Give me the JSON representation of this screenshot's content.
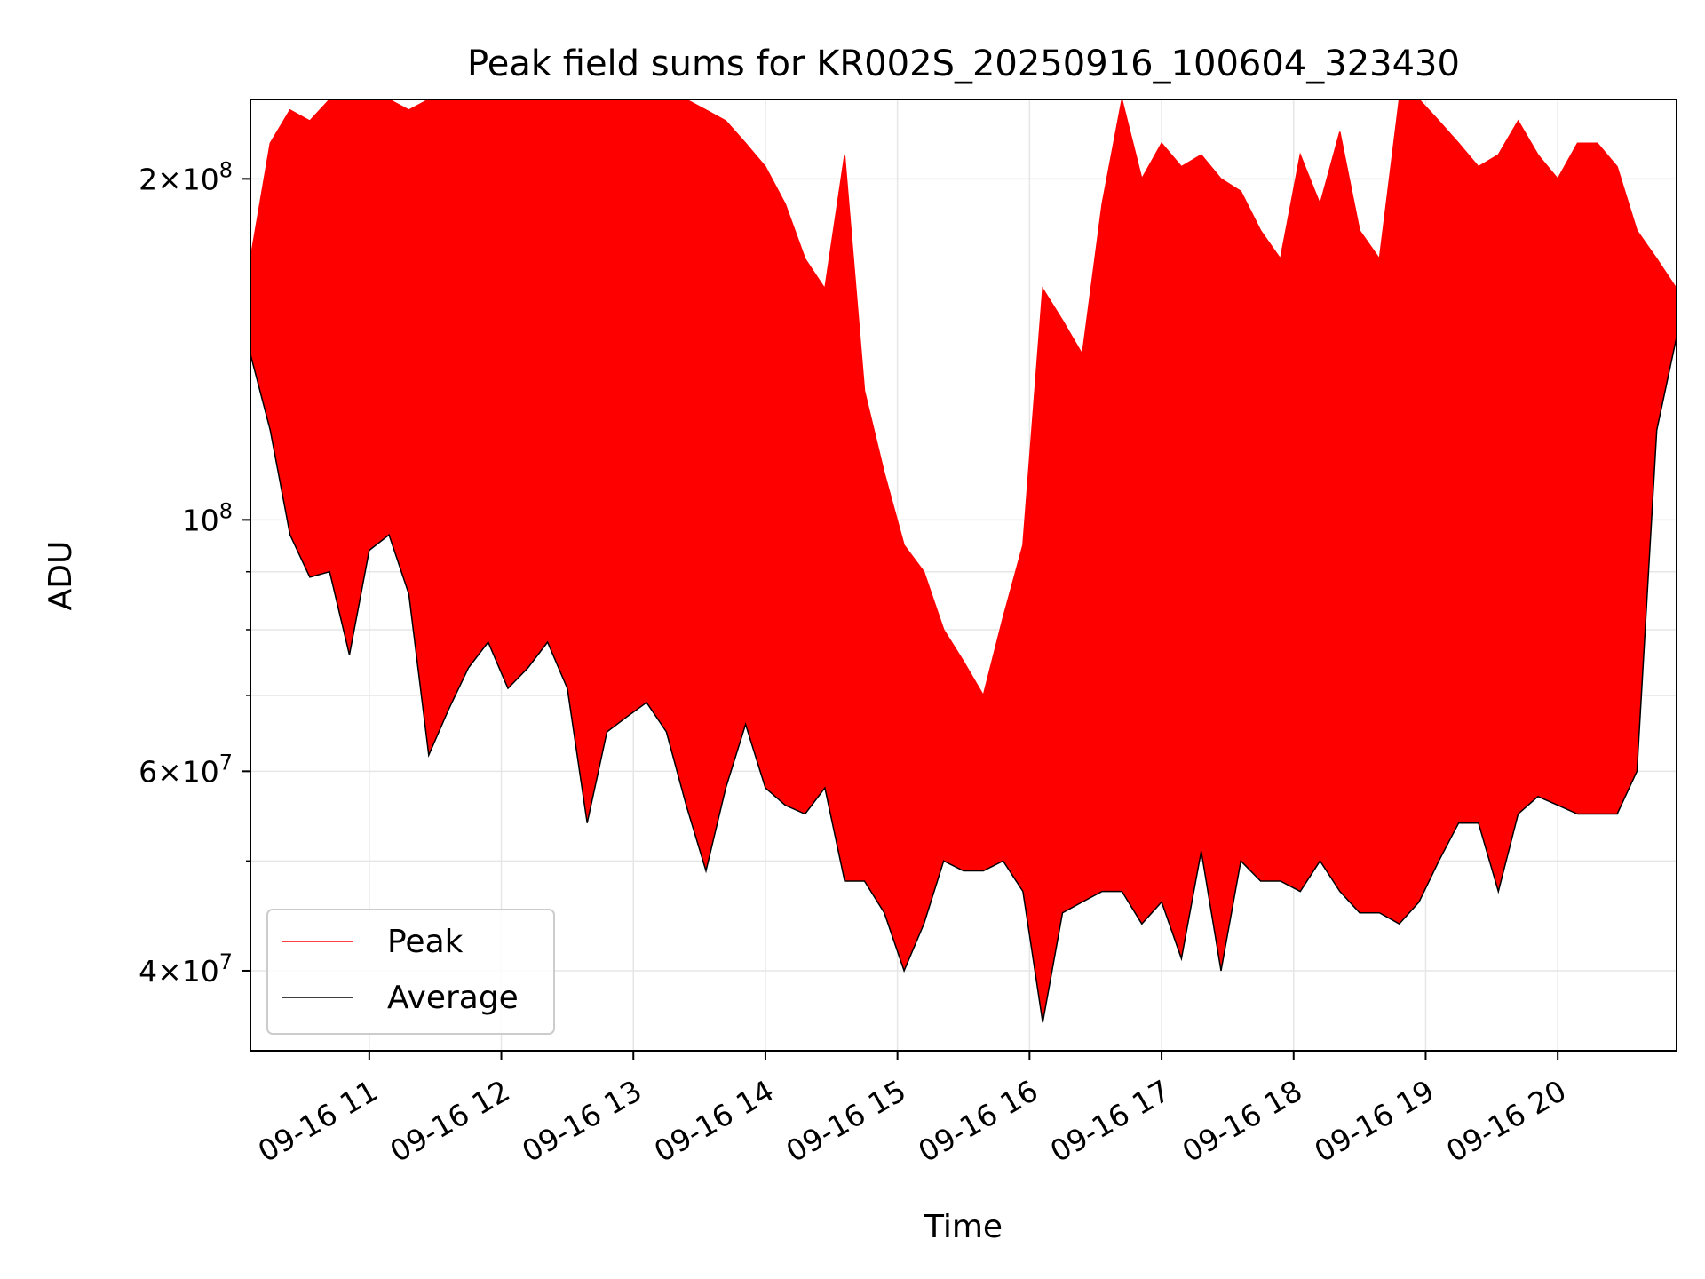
{
  "chart_data": {
    "type": "line",
    "title": "Peak field sums for KR002S_20250916_100604_323430",
    "xlabel": "Time",
    "ylabel": "ADU",
    "y_scale": "log",
    "ylim": [
      34000000,
      235000000
    ],
    "xlim": [
      "2025-09-16 10:06",
      "2025-09-16 20:54"
    ],
    "grid": true,
    "legend_position": "lower-left",
    "x_tick_labels": [
      "09-16 11",
      "09-16 12",
      "09-16 13",
      "09-16 14",
      "09-16 15",
      "09-16 16",
      "09-16 17",
      "09-16 18",
      "09-16 19",
      "09-16 20"
    ],
    "x_tick_times": [
      "2025-09-16 11:00",
      "2025-09-16 12:00",
      "2025-09-16 13:00",
      "2025-09-16 14:00",
      "2025-09-16 15:00",
      "2025-09-16 16:00",
      "2025-09-16 17:00",
      "2025-09-16 18:00",
      "2025-09-16 19:00",
      "2025-09-16 20:00"
    ],
    "y_ticks": [
      {
        "value": 40000000,
        "mantissa": "4",
        "exponent": "7"
      },
      {
        "value": 60000000,
        "mantissa": "6",
        "exponent": "7"
      },
      {
        "value": 100000000,
        "mantissa": "",
        "exponent": "8"
      },
      {
        "value": 200000000,
        "mantissa": "2",
        "exponent": "8"
      }
    ],
    "series": [
      {
        "name": "Peak",
        "color": "#ff0000",
        "x": [
          "2025-09-16 10:06",
          "2025-09-16 10:15",
          "2025-09-16 10:24",
          "2025-09-16 10:33",
          "2025-09-16 10:42",
          "2025-09-16 10:51",
          "2025-09-16 11:00",
          "2025-09-16 11:09",
          "2025-09-16 11:18",
          "2025-09-16 11:27",
          "2025-09-16 11:36",
          "2025-09-16 11:45",
          "2025-09-16 11:54",
          "2025-09-16 12:03",
          "2025-09-16 12:12",
          "2025-09-16 12:21",
          "2025-09-16 12:30",
          "2025-09-16 12:39",
          "2025-09-16 12:48",
          "2025-09-16 12:57",
          "2025-09-16 13:06",
          "2025-09-16 13:15",
          "2025-09-16 13:24",
          "2025-09-16 13:33",
          "2025-09-16 13:42",
          "2025-09-16 13:51",
          "2025-09-16 14:00",
          "2025-09-16 14:09",
          "2025-09-16 14:18",
          "2025-09-16 14:27",
          "2025-09-16 14:36",
          "2025-09-16 14:45",
          "2025-09-16 14:54",
          "2025-09-16 15:03",
          "2025-09-16 15:12",
          "2025-09-16 15:21",
          "2025-09-16 15:30",
          "2025-09-16 15:39",
          "2025-09-16 15:48",
          "2025-09-16 15:57",
          "2025-09-16 16:06",
          "2025-09-16 16:15",
          "2025-09-16 16:24",
          "2025-09-16 16:33",
          "2025-09-16 16:42",
          "2025-09-16 16:51",
          "2025-09-16 17:00",
          "2025-09-16 17:09",
          "2025-09-16 17:18",
          "2025-09-16 17:27",
          "2025-09-16 17:36",
          "2025-09-16 17:45",
          "2025-09-16 17:54",
          "2025-09-16 18:03",
          "2025-09-16 18:12",
          "2025-09-16 18:21",
          "2025-09-16 18:30",
          "2025-09-16 18:39",
          "2025-09-16 18:48",
          "2025-09-16 18:57",
          "2025-09-16 19:06",
          "2025-09-16 19:15",
          "2025-09-16 19:24",
          "2025-09-16 19:33",
          "2025-09-16 19:42",
          "2025-09-16 19:51",
          "2025-09-16 20:00",
          "2025-09-16 20:09",
          "2025-09-16 20:18",
          "2025-09-16 20:27",
          "2025-09-16 20:36",
          "2025-09-16 20:45",
          "2025-09-16 20:54"
        ],
        "values": [
          170000000,
          215000000,
          230000000,
          225000000,
          235000000,
          235000000,
          235000000,
          235000000,
          230000000,
          235000000,
          235000000,
          235000000,
          235000000,
          235000000,
          235000000,
          235000000,
          235000000,
          235000000,
          235000000,
          235000000,
          235000000,
          235000000,
          235000000,
          230000000,
          225000000,
          215000000,
          205000000,
          190000000,
          170000000,
          160000000,
          210000000,
          130000000,
          110000000,
          95000000,
          90000000,
          80000000,
          75000000,
          70000000,
          82000000,
          95000000,
          160000000,
          150000000,
          140000000,
          190000000,
          235000000,
          200000000,
          215000000,
          205000000,
          210000000,
          200000000,
          195000000,
          180000000,
          170000000,
          210000000,
          190000000,
          220000000,
          180000000,
          170000000,
          235000000,
          235000000,
          225000000,
          215000000,
          205000000,
          210000000,
          225000000,
          210000000,
          200000000,
          215000000,
          215000000,
          205000000,
          180000000,
          170000000,
          160000000
        ]
      },
      {
        "name": "Average",
        "color": "#000000",
        "x": [
          "2025-09-16 10:06",
          "2025-09-16 10:15",
          "2025-09-16 10:24",
          "2025-09-16 10:33",
          "2025-09-16 10:42",
          "2025-09-16 10:51",
          "2025-09-16 11:00",
          "2025-09-16 11:09",
          "2025-09-16 11:18",
          "2025-09-16 11:27",
          "2025-09-16 11:36",
          "2025-09-16 11:45",
          "2025-09-16 11:54",
          "2025-09-16 12:03",
          "2025-09-16 12:12",
          "2025-09-16 12:21",
          "2025-09-16 12:30",
          "2025-09-16 12:39",
          "2025-09-16 12:48",
          "2025-09-16 12:57",
          "2025-09-16 13:06",
          "2025-09-16 13:15",
          "2025-09-16 13:24",
          "2025-09-16 13:33",
          "2025-09-16 13:42",
          "2025-09-16 13:51",
          "2025-09-16 14:00",
          "2025-09-16 14:09",
          "2025-09-16 14:18",
          "2025-09-16 14:27",
          "2025-09-16 14:36",
          "2025-09-16 14:45",
          "2025-09-16 14:54",
          "2025-09-16 15:03",
          "2025-09-16 15:12",
          "2025-09-16 15:21",
          "2025-09-16 15:30",
          "2025-09-16 15:39",
          "2025-09-16 15:48",
          "2025-09-16 15:57",
          "2025-09-16 16:06",
          "2025-09-16 16:15",
          "2025-09-16 16:24",
          "2025-09-16 16:33",
          "2025-09-16 16:42",
          "2025-09-16 16:51",
          "2025-09-16 17:00",
          "2025-09-16 17:09",
          "2025-09-16 17:18",
          "2025-09-16 17:27",
          "2025-09-16 17:36",
          "2025-09-16 17:45",
          "2025-09-16 17:54",
          "2025-09-16 18:03",
          "2025-09-16 18:12",
          "2025-09-16 18:21",
          "2025-09-16 18:30",
          "2025-09-16 18:39",
          "2025-09-16 18:48",
          "2025-09-16 18:57",
          "2025-09-16 19:06",
          "2025-09-16 19:15",
          "2025-09-16 19:24",
          "2025-09-16 19:33",
          "2025-09-16 19:42",
          "2025-09-16 19:51",
          "2025-09-16 20:00",
          "2025-09-16 20:09",
          "2025-09-16 20:18",
          "2025-09-16 20:27",
          "2025-09-16 20:36",
          "2025-09-16 20:45",
          "2025-09-16 20:54"
        ],
        "values": [
          140000000,
          120000000,
          97000000,
          89000000,
          90000000,
          76000000,
          94000000,
          97000000,
          86000000,
          62000000,
          68000000,
          74000000,
          78000000,
          71000000,
          74000000,
          78000000,
          71000000,
          54000000,
          65000000,
          67000000,
          69000000,
          65000000,
          56000000,
          49000000,
          58000000,
          66000000,
          58000000,
          56000000,
          55000000,
          58000000,
          48000000,
          48000000,
          45000000,
          40000000,
          44000000,
          50000000,
          49000000,
          49000000,
          50000000,
          47000000,
          36000000,
          45000000,
          46000000,
          47000000,
          47000000,
          44000000,
          46000000,
          41000000,
          51000000,
          40000000,
          50000000,
          48000000,
          48000000,
          47000000,
          50000000,
          47000000,
          45000000,
          45000000,
          44000000,
          46000000,
          50000000,
          54000000,
          54000000,
          47000000,
          55000000,
          57000000,
          56000000,
          55000000,
          55000000,
          55000000,
          60000000,
          120000000,
          145000000
        ]
      }
    ]
  }
}
